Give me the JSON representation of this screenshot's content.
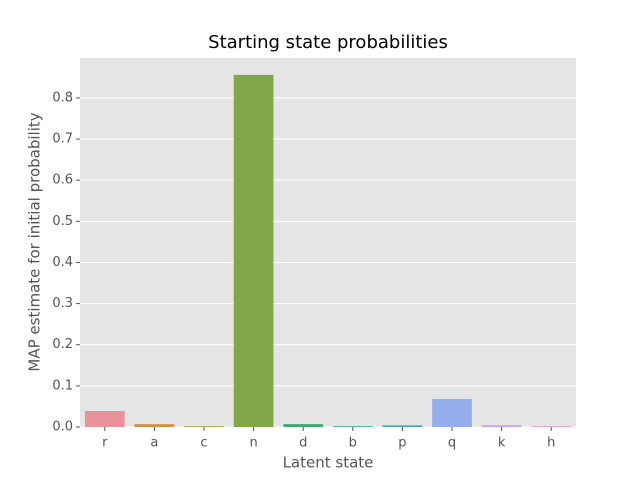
{
  "chart_data": {
    "type": "bar",
    "title": "Starting state probabilities",
    "x_label": "Latent state",
    "y_label": "MAP estimate for initial probability",
    "categories": [
      "r",
      "a",
      "c",
      "n",
      "d",
      "b",
      "p",
      "q",
      "k",
      "h"
    ],
    "values": [
      0.039,
      0.007,
      0.002,
      0.856,
      0.007,
      0.002,
      0.004,
      0.068,
      0.004,
      0.002
    ],
    "colors": [
      "#e8939b",
      "#d29345",
      "#a8a53f",
      "#80a849",
      "#3faa6e",
      "#3faaa0",
      "#42a6be",
      "#93aeea",
      "#c89ce8",
      "#e894cf"
    ],
    "ylim": [
      0,
      0.897
    ],
    "yticks": [
      {
        "value": 0,
        "label": "0.0"
      },
      0.1,
      0.2,
      0.3,
      0.4,
      0.5,
      0.6,
      0.7,
      0.8
    ],
    "grid": true
  }
}
